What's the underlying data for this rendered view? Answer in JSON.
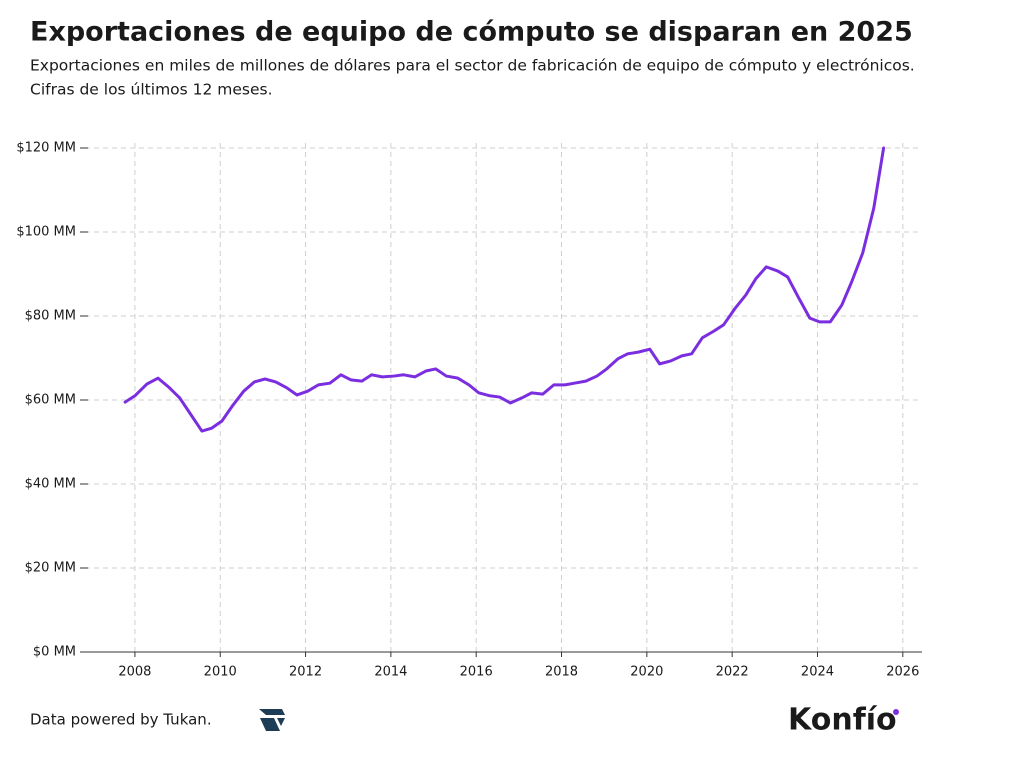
{
  "chart_data": {
    "type": "line",
    "title": "Exportaciones de equipo de cómputo se disparan en 2025",
    "subtitle": [
      "Exportaciones en miles de millones de dólares para el sector de fabricación de equipo de cómputo y electrónicos.",
      "Cifras de los últimos 12 meses."
    ],
    "x": [
      2007.77,
      2008.0,
      2008.28,
      2008.54,
      2008.8,
      2009.05,
      2009.3,
      2009.57,
      2009.8,
      2010.04,
      2010.3,
      2010.55,
      2010.8,
      2011.05,
      2011.3,
      2011.56,
      2011.8,
      2012.05,
      2012.3,
      2012.57,
      2012.83,
      2013.06,
      2013.32,
      2013.55,
      2013.8,
      2014.07,
      2014.3,
      2014.56,
      2014.82,
      2015.05,
      2015.3,
      2015.57,
      2015.83,
      2016.06,
      2016.32,
      2016.55,
      2016.8,
      2017.07,
      2017.3,
      2017.56,
      2017.82,
      2018.08,
      2018.3,
      2018.57,
      2018.83,
      2019.06,
      2019.32,
      2019.55,
      2019.8,
      2020.07,
      2020.3,
      2020.56,
      2020.82,
      2021.05,
      2021.3,
      2021.57,
      2021.8,
      2022.06,
      2022.32,
      2022.55,
      2022.8,
      2023.07,
      2023.3,
      2023.56,
      2023.82,
      2024.05,
      2024.3,
      2024.57,
      2024.8,
      2025.06,
      2025.32,
      2025.55
    ],
    "series": [
      {
        "color": "#7b2ee0",
        "values": [
          59.5,
          61,
          63.8,
          65.2,
          63,
          60.5,
          56.7,
          52.6,
          53.3,
          55,
          58.8,
          62.1,
          64.3,
          65,
          64.3,
          62.9,
          61.2,
          62.1,
          63.6,
          64,
          66,
          64.8,
          64.5,
          66,
          65.5,
          65.7,
          66,
          65.5,
          66.9,
          67.4,
          65.7,
          65.2,
          63.6,
          61.7,
          61,
          60.7,
          59.3,
          60.5,
          61.7,
          61.4,
          63.6,
          63.6,
          64,
          64.5,
          65.7,
          67.4,
          69.8,
          71,
          71.4,
          72.1,
          68.6,
          69.3,
          70.5,
          71,
          74.8,
          76.4,
          77.9,
          81.7,
          85,
          88.8,
          91.7,
          90.7,
          89.3,
          84.3,
          79.5,
          78.6,
          78.6,
          82.6,
          88.1,
          95,
          105.7,
          120
        ]
      }
    ],
    "xlim": [
      2006.83,
      2026.45
    ],
    "xticks": [
      2008,
      2010,
      2012,
      2014,
      2016,
      2018,
      2020,
      2022,
      2024,
      2026
    ],
    "ylim": [
      0,
      120
    ],
    "yticks": [
      {
        "value": 0,
        "label": "$0 MM"
      },
      {
        "value": 20,
        "label": "$20 MM"
      },
      {
        "value": 40,
        "label": "$40 MM"
      },
      {
        "value": 60,
        "label": "$60 MM"
      },
      {
        "value": 80,
        "label": "$80 MM"
      },
      {
        "value": 100,
        "label": "$100 MM"
      },
      {
        "value": 120,
        "label": "$120 MM"
      }
    ],
    "grid": true,
    "source": "Data powered by Tukan.",
    "brand": "Konfío"
  }
}
